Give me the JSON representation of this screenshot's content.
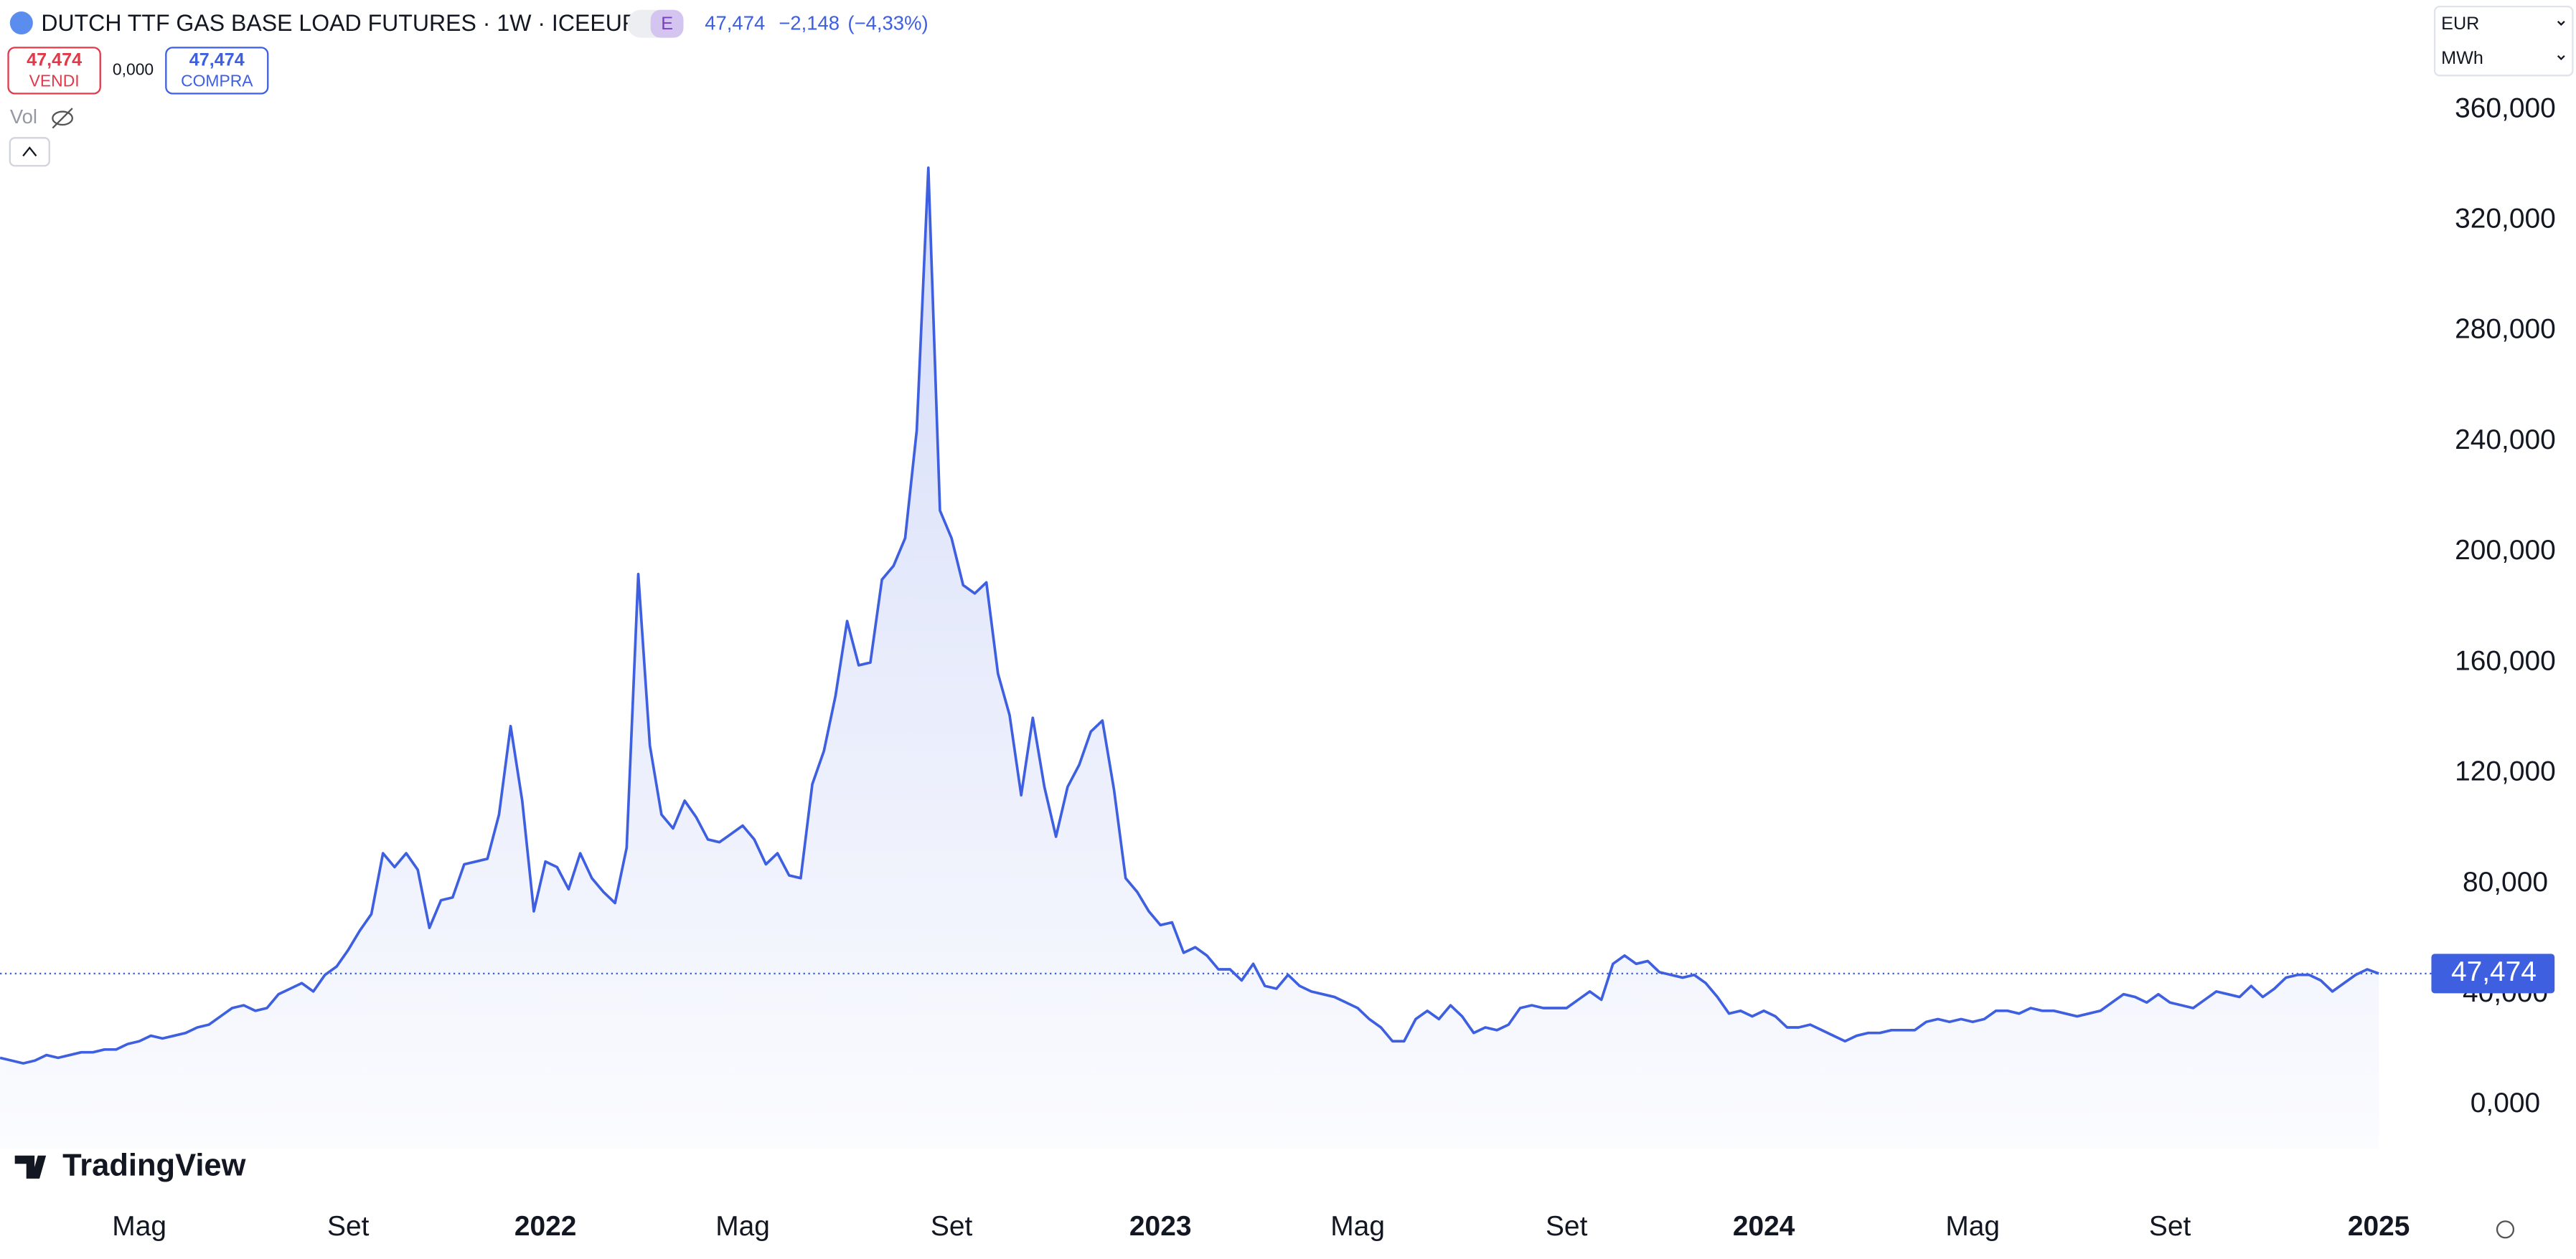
{
  "header": {
    "title": "DUTCH TTF GAS BASE LOAD FUTURES · 1W · ICEEUR",
    "badge": "E",
    "last": "47,474",
    "change": "−2,148",
    "change_pct": "(−4,33%)",
    "sell_price": "47,474",
    "sell_label": "VENDI",
    "spread": "0,000",
    "buy_price": "47,474",
    "buy_label": "COMPRA",
    "volume_label": "Vol",
    "currency": "EUR",
    "unit": "MWh",
    "brand": "TradingView"
  },
  "chart_data": {
    "type": "area",
    "color": "#3d5fe0",
    "values": [
      17,
      16,
      15,
      16,
      18,
      17,
      18,
      19,
      19,
      20,
      20,
      22,
      23,
      25,
      24,
      25,
      26,
      28,
      29,
      32,
      35,
      36,
      34,
      35,
      40,
      42,
      44,
      41,
      47,
      50,
      56,
      63,
      69,
      91,
      86,
      91,
      85,
      64,
      74,
      75,
      87,
      88,
      89,
      105,
      137,
      110,
      70,
      88,
      86,
      78,
      91,
      82,
      77,
      73,
      93,
      192,
      130,
      105,
      100,
      110,
      104,
      96,
      95,
      98,
      101,
      96,
      87,
      91,
      83,
      82,
      116,
      128,
      148,
      175,
      159,
      160,
      190,
      195,
      205,
      244,
      339,
      215,
      205,
      188,
      185,
      189,
      156,
      141,
      112,
      140,
      115,
      97,
      115,
      123,
      135,
      139,
      114,
      82,
      77,
      70,
      65,
      66,
      55,
      57,
      54,
      49,
      49,
      45,
      51,
      43,
      42,
      47,
      43,
      41,
      40,
      39,
      37,
      35,
      31,
      28,
      23,
      23,
      31,
      34,
      31,
      36,
      32,
      26,
      28,
      27,
      29,
      35,
      36,
      35,
      35,
      35,
      38,
      41,
      38,
      51,
      54,
      51,
      52,
      48,
      47,
      46,
      47,
      44,
      39,
      33,
      34,
      32,
      34,
      32,
      28,
      28,
      29,
      27,
      25,
      23,
      25,
      26,
      26,
      27,
      27,
      27,
      30,
      31,
      30,
      31,
      30,
      31,
      34,
      34,
      33,
      35,
      34,
      34,
      33,
      32,
      33,
      34,
      37,
      40,
      39,
      37,
      40,
      37,
      36,
      35,
      38,
      41,
      40,
      39,
      43,
      39,
      42,
      46,
      47,
      47,
      45,
      41,
      44,
      47,
      49,
      47.474
    ],
    "xticks": [
      {
        "value": 12,
        "label": "Mag"
      },
      {
        "value": 30,
        "label": "Set"
      },
      {
        "value": 47,
        "label": "2022"
      },
      {
        "value": 64,
        "label": "Mag"
      },
      {
        "value": 82,
        "label": "Set"
      },
      {
        "value": 100,
        "label": "2023"
      },
      {
        "value": 117,
        "label": "Mag"
      },
      {
        "value": 135,
        "label": "Set"
      },
      {
        "value": 152,
        "label": "2024"
      },
      {
        "value": 170,
        "label": "Mag"
      },
      {
        "value": 187,
        "label": "Set"
      },
      {
        "value": 205,
        "label": "2025"
      }
    ],
    "ylim": [
      -16,
      370
    ],
    "yticks": [
      {
        "value": 0,
        "label": "0,000"
      },
      {
        "value": 40,
        "label": "40,000"
      },
      {
        "value": 80,
        "label": "80,000"
      },
      {
        "value": 120,
        "label": "120,000"
      },
      {
        "value": 160,
        "label": "160,000"
      },
      {
        "value": 200,
        "label": "200,000"
      },
      {
        "value": 240,
        "label": "240,000"
      },
      {
        "value": 280,
        "label": "280,000"
      },
      {
        "value": 320,
        "label": "320,000"
      },
      {
        "value": 360,
        "label": "360,000"
      }
    ],
    "price_line": {
      "value": 47.474,
      "label": "47,474"
    },
    "grid": false
  }
}
